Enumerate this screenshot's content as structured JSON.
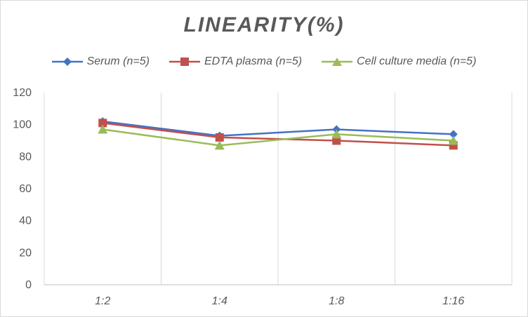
{
  "chart_data": {
    "type": "line",
    "title": "LINEARITY(%)",
    "categories": [
      "1:2",
      "1:4",
      "1:8",
      "1:16"
    ],
    "series": [
      {
        "name": "Serum (n=5)",
        "values": [
          102,
          93,
          97,
          94
        ],
        "color": "#4472C4",
        "marker": "diamond"
      },
      {
        "name": "EDTA plasma (n=5)",
        "values": [
          101,
          92,
          90,
          87
        ],
        "color": "#C0504D",
        "marker": "square"
      },
      {
        "name": "Cell culture media (n=5)",
        "values": [
          97,
          87,
          94,
          90
        ],
        "color": "#9BBB59",
        "marker": "triangle"
      }
    ],
    "ylim": [
      0,
      120
    ],
    "yticks": [
      0,
      20,
      40,
      60,
      80,
      100,
      120
    ],
    "xlabel": "",
    "ylabel": "",
    "grid": "vertical",
    "legend_position": "top"
  }
}
